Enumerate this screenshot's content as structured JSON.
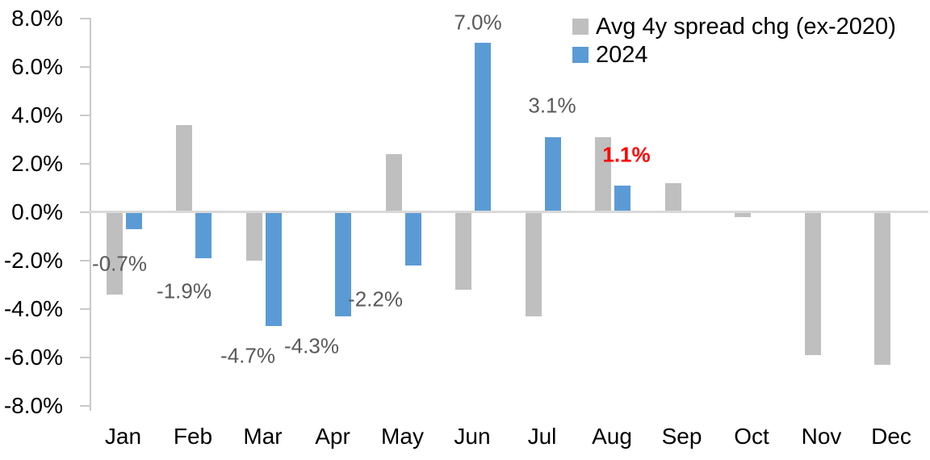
{
  "chart_data": {
    "type": "bar",
    "title": "",
    "categories": [
      "Jan",
      "Feb",
      "Mar",
      "Apr",
      "May",
      "Jun",
      "Jul",
      "Aug",
      "Sep",
      "Oct",
      "Nov",
      "Dec"
    ],
    "series": [
      {
        "name": "Avg 4y spread chg (ex-2020)",
        "color": "#BFBFBF",
        "values": [
          -3.4,
          3.6,
          -2.0,
          0.0,
          2.4,
          -3.2,
          -4.3,
          3.1,
          1.2,
          -0.2,
          -5.9,
          -6.3
        ]
      },
      {
        "name": "2024",
        "color": "#5B9BD5",
        "values": [
          -0.7,
          -1.9,
          -4.7,
          -4.3,
          -2.2,
          7.0,
          3.1,
          1.1,
          null,
          null,
          null,
          null
        ]
      }
    ],
    "y_axis": {
      "min": -8,
      "max": 8,
      "step": 2,
      "format": "percent",
      "tick_labels": [
        "8.0%",
        "6.0%",
        "4.0%",
        "2.0%",
        "0.0%",
        "-2.0%",
        "-4.0%",
        "-6.0%",
        "-8.0%"
      ]
    },
    "x_axis": {
      "label": ""
    },
    "grid": "zero-line-only",
    "legend_position": "top-right",
    "data_labels": [
      {
        "category": "Jan",
        "series": "2024",
        "text": "-0.7%",
        "emphasis": false
      },
      {
        "category": "Feb",
        "series": "2024",
        "text": "-1.9%",
        "emphasis": false
      },
      {
        "category": "Mar",
        "series": "2024",
        "text": "-4.7%",
        "emphasis": false
      },
      {
        "category": "Apr",
        "series": "2024",
        "text": "-4.3%",
        "emphasis": false
      },
      {
        "category": "May",
        "series": "2024",
        "text": "-2.2%",
        "emphasis": false
      },
      {
        "category": "Jun",
        "series": "2024",
        "text": "7.0%",
        "emphasis": false
      },
      {
        "category": "Jul",
        "series": "2024",
        "text": "3.1%",
        "emphasis": false
      },
      {
        "category": "Aug",
        "series": "2024",
        "text": "1.1%",
        "emphasis": true
      }
    ]
  },
  "colors": {
    "gray_series": "#BFBFBF",
    "blue_series": "#5B9BD5",
    "label_text": "#595959",
    "emphasis_text": "#FF0000",
    "axis_line": "#C9C9C9",
    "zero_line": "#D9D9D9",
    "axis_text": "#000000"
  }
}
